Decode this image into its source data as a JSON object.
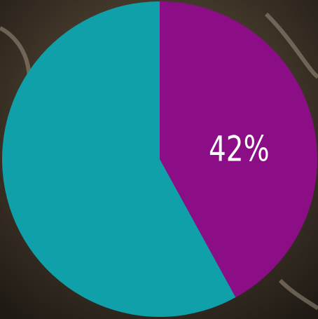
{
  "chart_data": {
    "type": "pie",
    "series": [
      {
        "values": [
          42,
          58
        ],
        "value_labels": [
          "42%",
          null
        ],
        "colors": [
          "#8b0e86",
          "#10a0a9"
        ]
      }
    ],
    "start_angle": 0,
    "direction": "clockwise"
  }
}
